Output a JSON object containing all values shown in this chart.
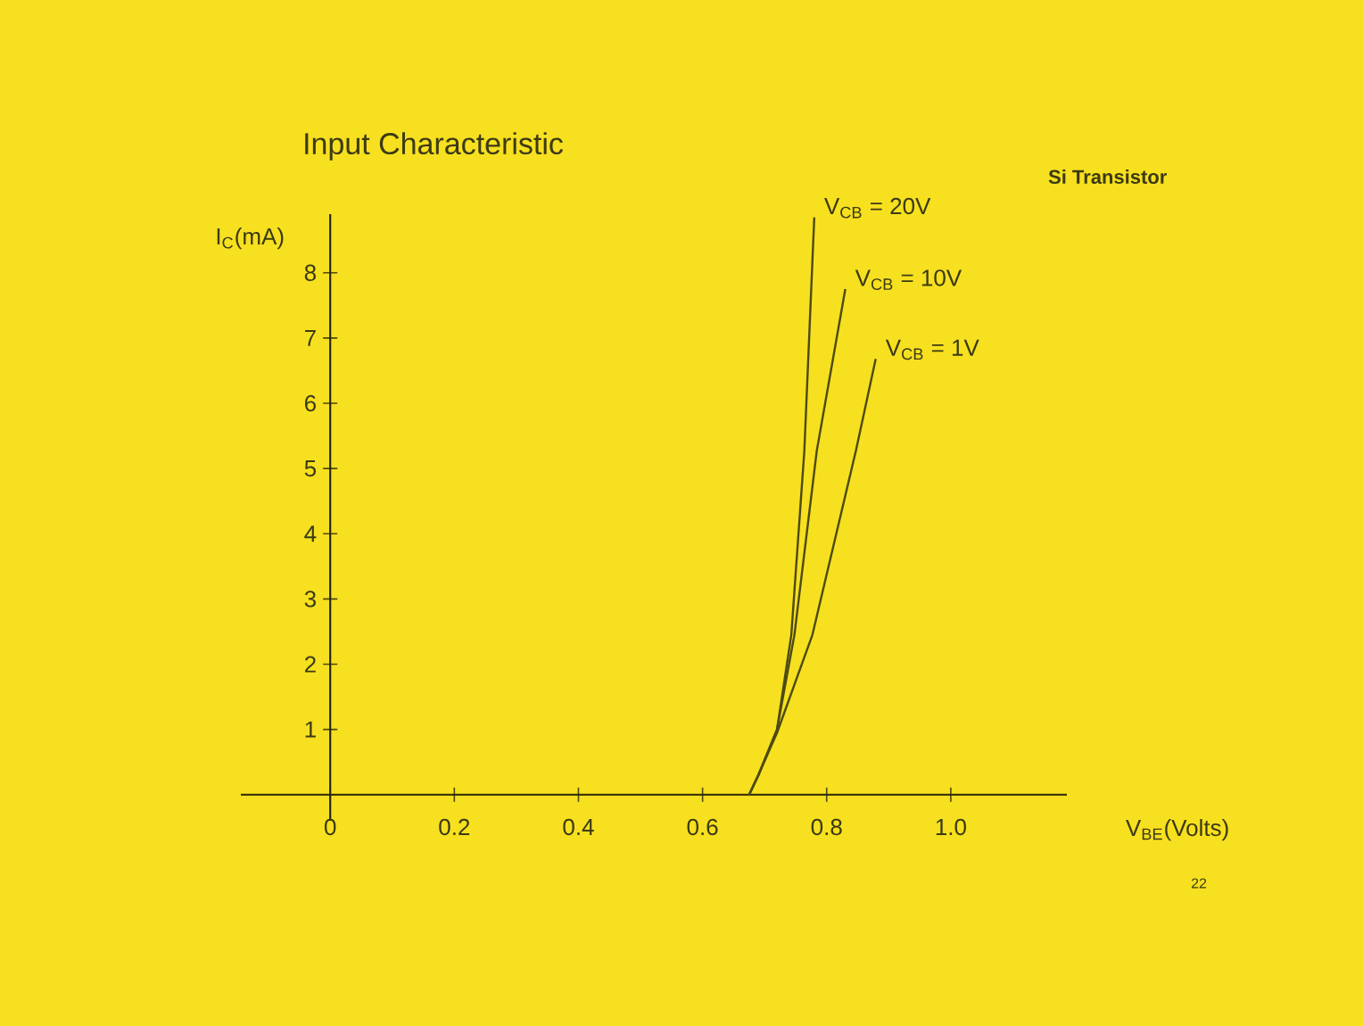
{
  "chart_data": {
    "type": "line",
    "title": "Input Characteristic",
    "xlabel": "V$_{BE}$(Volts)",
    "ylabel": "I$_{C}$(mA)",
    "annotations": [
      "Si Transistor",
      "22"
    ],
    "xlim": [
      -0.144,
      1.187
    ],
    "ylim": [
      -0.4,
      8.9
    ],
    "xticks": [
      0,
      0.2,
      0.4,
      0.6,
      0.8,
      {
        "value": 1,
        "label": "1.0"
      }
    ],
    "yticks": [
      1,
      2,
      3,
      4,
      5,
      6,
      7,
      8
    ],
    "grid": false,
    "marker": "none",
    "line_style": "solid",
    "series": [
      {
        "name": "V$_{CB}$ = 20V",
        "color": "#4d4a12",
        "x": [
          0.675,
          0.69,
          0.72,
          0.743,
          0.764,
          0.78
        ],
        "values": [
          0,
          0.3,
          1.0,
          2.45,
          5.27,
          8.85
        ]
      },
      {
        "name": "V$_{CB}$ = 10V",
        "color": "#4d4a12",
        "x": [
          0.675,
          0.69,
          0.72,
          0.748,
          0.784,
          0.83
        ],
        "values": [
          0,
          0.3,
          1.0,
          2.45,
          5.27,
          7.75
        ]
      },
      {
        "name": "V$_{CB}$ = 1V",
        "color": "#4d4a12",
        "x": [
          0.675,
          0.69,
          0.72,
          0.777,
          0.847,
          0.879
        ],
        "values": [
          0,
          0.3,
          0.95,
          2.45,
          5.27,
          6.68
        ]
      }
    ]
  }
}
